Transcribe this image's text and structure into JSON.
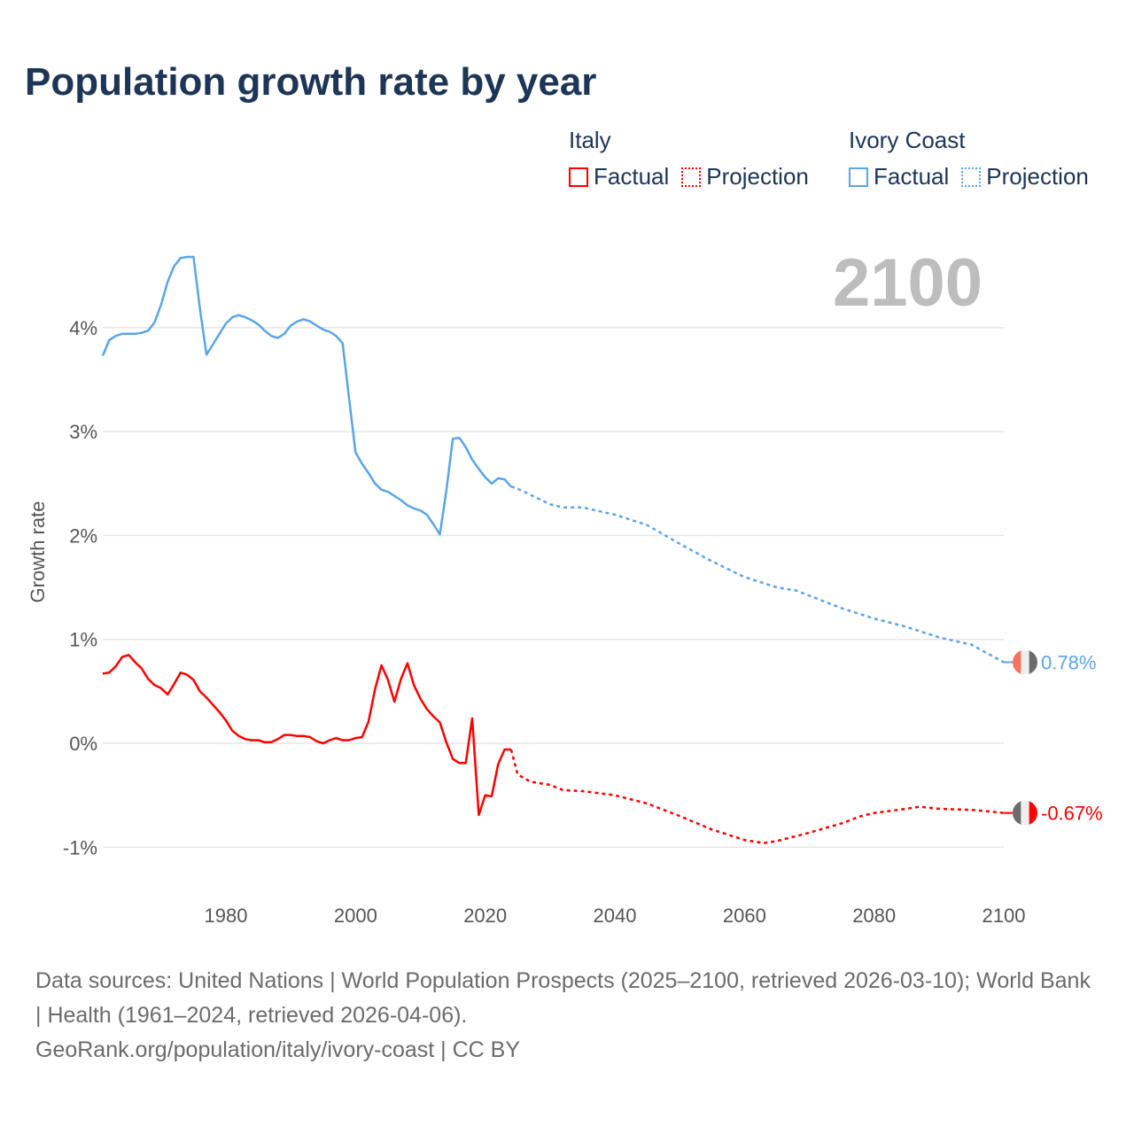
{
  "title": "Population growth rate by year",
  "current_year": "2100",
  "legend": {
    "groups": [
      {
        "name": "Italy",
        "factual": "Factual",
        "projection": "Projection",
        "color": "#ff0000"
      },
      {
        "name": "Ivory Coast",
        "factual": "Factual",
        "projection": "Projection",
        "color": "#5ba4e8"
      }
    ]
  },
  "footer": {
    "line1": "Data sources: United Nations | World Population Prospects (2025–2100, retrieved 2026-03-10); World Bank | Health (1961–2024, retrieved 2026-04-06).",
    "line2": "GeoRank.org/population/italy/ivory-coast | CC BY"
  },
  "chart_data": {
    "type": "line",
    "title": "Population growth rate by year",
    "xlabel": "",
    "ylabel": "Growth rate",
    "xlim": [
      1961,
      2100
    ],
    "ylim": [
      -1.3,
      4.9
    ],
    "x_ticks": [
      1980,
      2000,
      2020,
      2040,
      2060,
      2080,
      2100
    ],
    "x_tick_labels": [
      "1980",
      "2000",
      "2020",
      "2040",
      "2060",
      "2080",
      "2100"
    ],
    "y_ticks": [
      -1,
      0,
      1,
      2,
      3,
      4
    ],
    "y_tick_labels": [
      "-1%",
      "0%",
      "1%",
      "2%",
      "3%",
      "4%"
    ],
    "grid": true,
    "legend_position": "top-right",
    "series": [
      {
        "name": "Italy",
        "color": "#ff0000",
        "end_label": "-0.67%",
        "flag_colors": [
          "#6b6b6b",
          "#eeeeee",
          "#ff0000"
        ],
        "factual": {
          "x": [
            1961,
            1962,
            1963,
            1964,
            1965,
            1966,
            1967,
            1968,
            1969,
            1970,
            1971,
            1972,
            1973,
            1974,
            1975,
            1976,
            1977,
            1978,
            1979,
            1980,
            1981,
            1982,
            1983,
            1984,
            1985,
            1986,
            1987,
            1988,
            1989,
            1990,
            1991,
            1992,
            1993,
            1994,
            1995,
            1996,
            1997,
            1998,
            1999,
            2000,
            2001,
            2002,
            2003,
            2004,
            2005,
            2006,
            2007,
            2008,
            2009,
            2010,
            2011,
            2012,
            2013,
            2014,
            2015,
            2016,
            2017,
            2018,
            2019,
            2020,
            2021,
            2022,
            2023,
            2024
          ],
          "y": [
            0.67,
            0.68,
            0.74,
            0.83,
            0.85,
            0.78,
            0.72,
            0.62,
            0.56,
            0.53,
            0.47,
            0.57,
            0.68,
            0.66,
            0.61,
            0.5,
            0.44,
            0.37,
            0.3,
            0.22,
            0.12,
            0.07,
            0.04,
            0.03,
            0.03,
            0.01,
            0.01,
            0.04,
            0.08,
            0.08,
            0.07,
            0.07,
            0.06,
            0.02,
            0.0,
            0.03,
            0.05,
            0.03,
            0.03,
            0.05,
            0.06,
            0.21,
            0.52,
            0.75,
            0.61,
            0.4,
            0.62,
            0.77,
            0.56,
            0.43,
            0.33,
            0.26,
            0.2,
            0.01,
            -0.15,
            -0.19,
            -0.19,
            0.24,
            -0.69,
            -0.5,
            -0.51,
            -0.2,
            -0.06,
            -0.06
          ]
        },
        "projection": {
          "x": [
            2024,
            2025,
            2027,
            2030,
            2032,
            2035,
            2040,
            2045,
            2050,
            2055,
            2060,
            2063,
            2065,
            2070,
            2075,
            2078,
            2080,
            2085,
            2087,
            2090,
            2095,
            2100
          ],
          "y": [
            -0.06,
            -0.3,
            -0.37,
            -0.4,
            -0.45,
            -0.46,
            -0.5,
            -0.58,
            -0.7,
            -0.83,
            -0.93,
            -0.96,
            -0.94,
            -0.86,
            -0.77,
            -0.7,
            -0.67,
            -0.63,
            -0.61,
            -0.63,
            -0.64,
            -0.67
          ]
        }
      },
      {
        "name": "Ivory Coast",
        "color": "#5ba4e8",
        "end_label": "0.78%",
        "flag_colors": [
          "#f7735a",
          "#eeeeee",
          "#6b6b6b"
        ],
        "factual": {
          "x": [
            1961,
            1962,
            1963,
            1964,
            1965,
            1966,
            1967,
            1968,
            1969,
            1970,
            1971,
            1972,
            1973,
            1974,
            1975,
            1976,
            1977,
            1978,
            1979,
            1980,
            1981,
            1982,
            1983,
            1984,
            1985,
            1986,
            1987,
            1988,
            1989,
            1990,
            1991,
            1992,
            1993,
            1994,
            1995,
            1996,
            1997,
            1998,
            1999,
            2000,
            2001,
            2002,
            2003,
            2004,
            2005,
            2006,
            2007,
            2008,
            2009,
            2010,
            2011,
            2012,
            2013,
            2014,
            2015,
            2016,
            2017,
            2018,
            2019,
            2020,
            2021,
            2022,
            2023,
            2024
          ],
          "y": [
            3.73,
            3.88,
            3.92,
            3.94,
            3.94,
            3.94,
            3.95,
            3.97,
            4.05,
            4.22,
            4.44,
            4.59,
            4.67,
            4.68,
            4.68,
            4.18,
            3.74,
            3.84,
            3.94,
            4.04,
            4.1,
            4.12,
            4.1,
            4.07,
            4.03,
            3.97,
            3.92,
            3.9,
            3.94,
            4.02,
            4.06,
            4.08,
            4.06,
            4.02,
            3.98,
            3.96,
            3.92,
            3.85,
            3.32,
            2.8,
            2.69,
            2.6,
            2.5,
            2.44,
            2.42,
            2.38,
            2.34,
            2.29,
            2.26,
            2.24,
            2.2,
            2.11,
            2.01,
            2.43,
            2.93,
            2.94,
            2.85,
            2.73,
            2.64,
            2.56,
            2.5,
            2.55,
            2.54,
            2.47
          ]
        },
        "projection": {
          "x": [
            2024,
            2025,
            2030,
            2032,
            2035,
            2040,
            2045,
            2050,
            2055,
            2060,
            2065,
            2068,
            2070,
            2075,
            2080,
            2085,
            2090,
            2095,
            2100
          ],
          "y": [
            2.47,
            2.45,
            2.3,
            2.27,
            2.27,
            2.2,
            2.1,
            1.92,
            1.75,
            1.6,
            1.5,
            1.47,
            1.42,
            1.3,
            1.2,
            1.12,
            1.02,
            0.95,
            0.78
          ]
        }
      }
    ]
  }
}
